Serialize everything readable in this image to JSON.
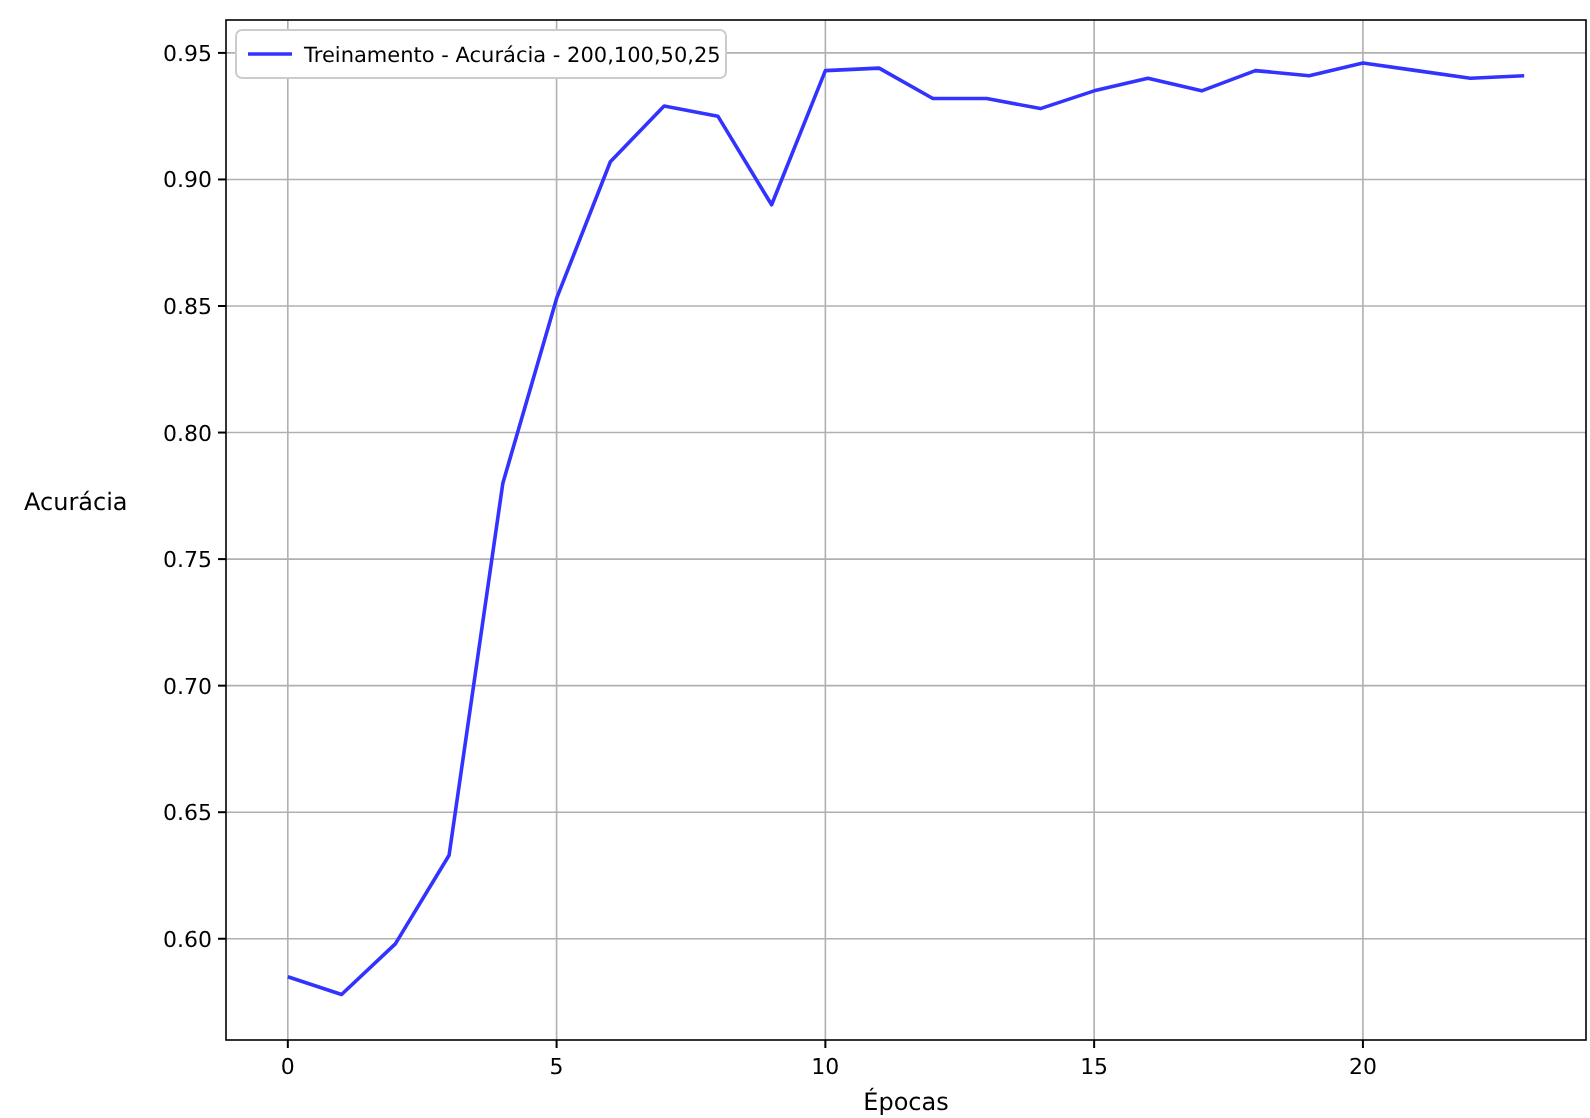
{
  "chart_data": {
    "type": "line",
    "xlabel": "Épocas",
    "ylabel": "Acurácia",
    "x": [
      0,
      1,
      2,
      3,
      4,
      5,
      6,
      7,
      8,
      9,
      10,
      11,
      12,
      13,
      14,
      15,
      16,
      17,
      18,
      19,
      20,
      21,
      22,
      23
    ],
    "series": [
      {
        "name": "Treinamento - Acurácia - 200,100,50,25",
        "color": "#3333ff",
        "values": [
          0.585,
          0.578,
          0.598,
          0.633,
          0.78,
          0.853,
          0.907,
          0.929,
          0.925,
          0.89,
          0.943,
          0.944,
          0.932,
          0.932,
          0.928,
          0.935,
          0.94,
          0.935,
          0.943,
          0.941,
          0.946,
          0.943,
          0.94,
          0.941
        ]
      }
    ],
    "xlim": [
      -1.15,
      24.15
    ],
    "ylim": [
      0.56,
      0.963
    ],
    "xticks": [
      0,
      5,
      10,
      15,
      20
    ],
    "yticks": [
      {
        "value": 0.6,
        "label": "0.60"
      },
      {
        "value": 0.65,
        "label": "0.65"
      },
      {
        "value": 0.7,
        "label": "0.70"
      },
      {
        "value": 0.75,
        "label": "0.75"
      },
      {
        "value": 0.8,
        "label": "0.80"
      },
      {
        "value": 0.85,
        "label": "0.85"
      },
      {
        "value": 0.9,
        "label": "0.90"
      },
      {
        "value": 0.95,
        "label": "0.95"
      }
    ],
    "grid": true,
    "legend": "top left",
    "line_style": "solid",
    "marker": "none"
  }
}
